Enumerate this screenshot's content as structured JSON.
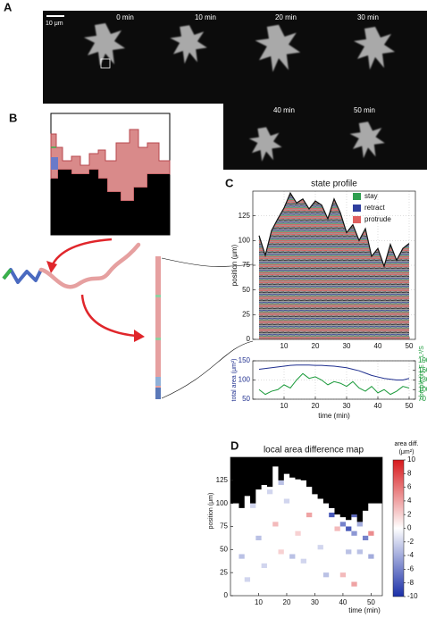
{
  "panels": {
    "a": {
      "label": "A",
      "scale_bar": "10 μm",
      "frames": [
        "0 min",
        "10 min",
        "20 min",
        "30 min",
        "40 min",
        "50 min"
      ]
    },
    "b": {
      "label": "B"
    },
    "c": {
      "label": "C"
    },
    "d": {
      "label": "D"
    }
  },
  "chart_data": [
    {
      "type": "line",
      "title": "state profile",
      "ylabel": "position (μm)",
      "x": [
        2,
        4,
        6,
        8,
        10,
        12,
        14,
        16,
        18,
        20,
        22,
        24,
        26,
        28,
        30,
        32,
        34,
        36,
        38,
        40,
        42,
        44,
        46,
        48,
        50
      ],
      "values": [
        105,
        85,
        110,
        122,
        133,
        148,
        138,
        142,
        132,
        140,
        136,
        122,
        142,
        128,
        108,
        116,
        100,
        112,
        84,
        92,
        74,
        96,
        80,
        92,
        97
      ],
      "color": "#111111",
      "xlim": [
        0,
        52
      ],
      "ylim": [
        0,
        150
      ],
      "xticks": [
        10,
        20,
        30,
        40,
        50
      ],
      "yticks": [
        0,
        25,
        50,
        75,
        100,
        125
      ],
      "grid": true,
      "legend": [
        {
          "name": "stay",
          "color": "#2e9e4f"
        },
        {
          "name": "retract",
          "color": "#2f3f9e"
        },
        {
          "name": "protrude",
          "color": "#e06060"
        }
      ]
    },
    {
      "type": "line",
      "xlabel": "time (min)",
      "ylabel": "total area (μm²)",
      "y2label": "complexity E = L²/S",
      "x": [
        2,
        4,
        6,
        8,
        10,
        12,
        14,
        16,
        18,
        20,
        22,
        24,
        26,
        28,
        30,
        32,
        34,
        36,
        38,
        40,
        42,
        44,
        46,
        48,
        50
      ],
      "series": [
        {
          "color": "#1f2f8f",
          "values": [
            128,
            130,
            132,
            134,
            136,
            138,
            139,
            139,
            139,
            138,
            138,
            137,
            136,
            134,
            132,
            128,
            124,
            118,
            112,
            108,
            104,
            102,
            100,
            100,
            104
          ]
        },
        {
          "color": "#1a9a3a",
          "axis": "y2",
          "values": [
            100,
            85,
            95,
            100,
            115,
            105,
            130,
            150,
            135,
            140,
            130,
            115,
            125,
            120,
            110,
            125,
            105,
            95,
            110,
            90,
            100,
            85,
            95,
            110,
            105
          ]
        }
      ],
      "xlim": [
        0,
        52
      ],
      "ylim": [
        50,
        150
      ],
      "yticks": [
        50,
        100,
        150
      ],
      "y2lim": [
        70,
        190
      ],
      "y2ticks": [
        70,
        100,
        130,
        160,
        190
      ],
      "xticks": [
        10,
        20,
        30,
        40,
        50
      ],
      "grid": true
    },
    {
      "type": "heatmap",
      "title": "local area difference map",
      "ylabel": "position (μm)",
      "xlabel": "time (min)",
      "x": [
        2,
        4,
        6,
        8,
        10,
        12,
        14,
        16,
        18,
        20,
        22,
        24,
        26,
        28,
        30,
        32,
        34,
        36,
        38,
        40,
        42,
        44,
        46,
        48,
        50
      ],
      "boundary": [
        100,
        95,
        108,
        100,
        115,
        120,
        118,
        140,
        125,
        132,
        128,
        126,
        125,
        118,
        110,
        105,
        100,
        95,
        88,
        85,
        82,
        88,
        80,
        92,
        100
      ],
      "cells": [
        {
          "t": 4,
          "position": 40,
          "value": -3
        },
        {
          "t": 8,
          "position": 95,
          "value": -2
        },
        {
          "t": 10,
          "position": 60,
          "value": -3
        },
        {
          "t": 12,
          "position": 30,
          "value": -2
        },
        {
          "t": 14,
          "position": 110,
          "value": -2
        },
        {
          "t": 16,
          "position": 75,
          "value": 3
        },
        {
          "t": 18,
          "position": 120,
          "value": -3
        },
        {
          "t": 18,
          "position": 45,
          "value": 2
        },
        {
          "t": 20,
          "position": 100,
          "value": -2
        },
        {
          "t": 22,
          "position": 40,
          "value": -3
        },
        {
          "t": 24,
          "position": 65,
          "value": 2
        },
        {
          "t": 26,
          "position": 35,
          "value": -2
        },
        {
          "t": 28,
          "position": 85,
          "value": 4
        },
        {
          "t": 30,
          "position": 115,
          "value": -3
        },
        {
          "t": 32,
          "position": 50,
          "value": -2
        },
        {
          "t": 34,
          "position": 20,
          "value": -3
        },
        {
          "t": 36,
          "position": 95,
          "value": -9
        },
        {
          "t": 36,
          "position": 85,
          "value": -8
        },
        {
          "t": 38,
          "position": 70,
          "value": 3
        },
        {
          "t": 40,
          "position": 75,
          "value": -6
        },
        {
          "t": 40,
          "position": 20,
          "value": 3
        },
        {
          "t": 42,
          "position": 70,
          "value": -8
        },
        {
          "t": 42,
          "position": 45,
          "value": -3
        },
        {
          "t": 44,
          "position": 65,
          "value": -5
        },
        {
          "t": 44,
          "position": 85,
          "value": -7
        },
        {
          "t": 44,
          "position": 10,
          "value": 4
        },
        {
          "t": 46,
          "position": 75,
          "value": -4
        },
        {
          "t": 46,
          "position": 45,
          "value": -3
        },
        {
          "t": 48,
          "position": 60,
          "value": -6
        },
        {
          "t": 50,
          "position": 65,
          "value": 5
        },
        {
          "t": 50,
          "position": 40,
          "value": -4
        },
        {
          "t": 6,
          "position": 15,
          "value": -2
        }
      ],
      "xlim": [
        0,
        54
      ],
      "ylim": [
        0,
        150
      ],
      "xticks": [
        10,
        20,
        30,
        40,
        50
      ],
      "yticks": [
        0,
        25,
        50,
        75,
        100,
        125
      ],
      "colorbar": {
        "label": "area diff.",
        "unit": "(μm²)",
        "lim": [
          -10,
          10
        ],
        "ticks": [
          10,
          8,
          6,
          4,
          2,
          0,
          -2,
          -4,
          -6,
          -8,
          -10
        ]
      }
    }
  ]
}
